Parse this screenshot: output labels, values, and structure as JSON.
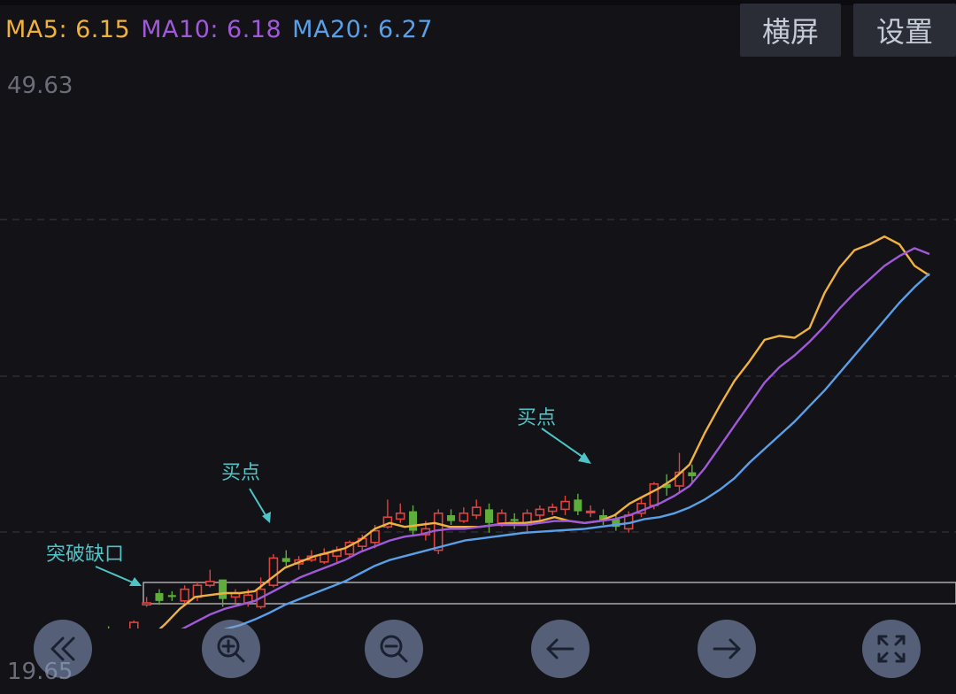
{
  "ma_legend": {
    "ma5": "MA5: 6.15",
    "ma10": "MA10: 6.18",
    "ma20": "MA20: 6.27"
  },
  "buttons": {
    "landscape": "横屏",
    "settings": "设置"
  },
  "price_axis": {
    "high": "49.63",
    "low": "19.65"
  },
  "annotations": {
    "gap_breakout": "突破缺口",
    "buy_point_1": "买点",
    "buy_point_2": "买点"
  },
  "controls": [
    {
      "name": "rewind",
      "icon": "double-chevron-left-icon"
    },
    {
      "name": "zoom-in",
      "icon": "zoom-in-icon"
    },
    {
      "name": "zoom-out",
      "icon": "zoom-out-icon"
    },
    {
      "name": "scroll-left",
      "icon": "arrow-left-icon"
    },
    {
      "name": "scroll-right",
      "icon": "arrow-right-icon"
    },
    {
      "name": "fullscreen",
      "icon": "fullscreen-icon"
    }
  ],
  "colors": {
    "up": "#e0433f",
    "down": "#5fae3c",
    "ma5": "#f0b23f",
    "ma10": "#a05ad8",
    "ma20": "#5aa0e8",
    "annotation": "#4fc3c6",
    "background": "#121217"
  },
  "chart_data": {
    "type": "candlestick",
    "ylim": [
      19.65,
      49.63
    ],
    "series": [
      {
        "name": "MA5",
        "values": [
          21.0,
          20.9,
          20.9,
          20.95,
          20.95,
          21.0,
          21.0,
          21.0,
          21.0,
          21.05,
          21.3,
          22.0,
          22.8,
          23.4,
          23.5,
          23.6,
          23.6,
          23.7,
          24.3,
          24.9,
          25.2,
          25.5,
          25.7,
          25.9,
          26.3,
          26.9,
          27.2,
          27.0,
          27.1,
          27.2,
          27.0,
          27.0,
          27.0,
          27.1,
          27.2,
          27.2,
          27.3,
          27.5,
          27.3,
          27.2,
          27.3,
          27.6,
          28.2,
          28.6,
          29.0,
          29.5,
          30.2,
          31.8,
          33.2,
          34.5,
          35.5,
          36.6,
          36.8,
          36.7,
          37.2,
          39.0,
          40.3,
          41.2,
          41.5,
          41.9,
          41.5,
          40.4,
          39.9
        ]
      },
      {
        "name": "MA10",
        "values": [
          20.9,
          20.8,
          20.8,
          20.8,
          20.85,
          20.9,
          20.9,
          20.9,
          20.95,
          21.0,
          21.05,
          21.3,
          21.7,
          22.1,
          22.5,
          22.8,
          23.0,
          23.2,
          23.6,
          24.0,
          24.4,
          24.7,
          25.0,
          25.3,
          25.7,
          26.0,
          26.3,
          26.5,
          26.6,
          26.8,
          26.9,
          26.9,
          27.0,
          27.1,
          27.1,
          27.1,
          27.2,
          27.3,
          27.3,
          27.2,
          27.3,
          27.4,
          27.6,
          27.9,
          28.2,
          28.6,
          29.1,
          30.0,
          31.1,
          32.2,
          33.3,
          34.4,
          35.2,
          35.8,
          36.5,
          37.3,
          38.2,
          39.0,
          39.7,
          40.4,
          40.9,
          41.3,
          41.0
        ]
      },
      {
        "name": "MA20",
        "values": [
          20.75,
          20.75,
          20.75,
          20.75,
          20.75,
          20.75,
          20.8,
          20.8,
          20.8,
          20.85,
          20.95,
          21.1,
          21.25,
          21.45,
          21.6,
          21.75,
          21.95,
          22.25,
          22.6,
          23.0,
          23.3,
          23.6,
          23.9,
          24.2,
          24.6,
          25.0,
          25.3,
          25.5,
          25.7,
          25.9,
          26.1,
          26.3,
          26.4,
          26.5,
          26.6,
          26.7,
          26.75,
          26.8,
          26.85,
          26.9,
          27.0,
          27.1,
          27.2,
          27.4,
          27.5,
          27.7,
          28.0,
          28.4,
          28.9,
          29.5,
          30.3,
          31.0,
          31.7,
          32.4,
          33.2,
          34.0,
          34.9,
          35.8,
          36.7,
          37.6,
          38.5,
          39.3,
          40.0
        ]
      }
    ],
    "candles": [
      {
        "o": 21.0,
        "c": 20.6,
        "h": 21.2,
        "l": 20.4
      },
      {
        "o": 20.8,
        "c": 21.1,
        "h": 21.3,
        "l": 20.6
      },
      {
        "o": 21.0,
        "c": 20.7,
        "h": 21.4,
        "l": 20.5
      },
      {
        "o": 20.8,
        "c": 21.2,
        "h": 21.5,
        "l": 20.6
      },
      {
        "o": 21.1,
        "c": 20.9,
        "h": 21.3,
        "l": 20.7
      },
      {
        "o": 20.9,
        "c": 21.2,
        "h": 21.4,
        "l": 20.8
      },
      {
        "o": 21.2,
        "c": 21.0,
        "h": 21.3,
        "l": 20.8
      },
      {
        "o": 21.0,
        "c": 21.3,
        "h": 21.4,
        "l": 20.9
      },
      {
        "o": 21.3,
        "c": 21.1,
        "h": 21.9,
        "l": 20.9
      },
      {
        "o": 21.0,
        "c": 21.4,
        "h": 21.6,
        "l": 20.6
      },
      {
        "o": 21.3,
        "c": 22.1,
        "h": 22.2,
        "l": 21.2
      },
      {
        "o": 23.0,
        "c": 23.1,
        "h": 23.4,
        "l": 22.9
      },
      {
        "o": 23.6,
        "c": 23.2,
        "h": 23.8,
        "l": 23.0
      },
      {
        "o": 23.5,
        "c": 23.4,
        "h": 23.7,
        "l": 23.2
      },
      {
        "o": 23.2,
        "c": 23.8,
        "h": 24.0,
        "l": 23.1
      },
      {
        "o": 23.4,
        "c": 24.0,
        "h": 24.2,
        "l": 23.2
      },
      {
        "o": 24.0,
        "c": 24.2,
        "h": 24.8,
        "l": 23.9
      },
      {
        "o": 24.3,
        "c": 23.3,
        "h": 24.3,
        "l": 22.9
      },
      {
        "o": 23.4,
        "c": 23.6,
        "h": 23.8,
        "l": 23.1
      },
      {
        "o": 23.1,
        "c": 23.5,
        "h": 23.8,
        "l": 22.9
      },
      {
        "o": 22.9,
        "c": 23.8,
        "h": 24.4,
        "l": 22.8
      },
      {
        "o": 24.0,
        "c": 25.4,
        "h": 25.6,
        "l": 23.9
      },
      {
        "o": 25.4,
        "c": 25.2,
        "h": 25.8,
        "l": 25.0
      },
      {
        "o": 25.1,
        "c": 25.3,
        "h": 25.5,
        "l": 24.8
      },
      {
        "o": 25.3,
        "c": 25.5,
        "h": 25.8,
        "l": 25.2
      },
      {
        "o": 25.2,
        "c": 25.6,
        "h": 25.9,
        "l": 25.1
      },
      {
        "o": 25.5,
        "c": 25.8,
        "h": 26.0,
        "l": 25.2
      },
      {
        "o": 25.6,
        "c": 26.2,
        "h": 26.3,
        "l": 25.4
      },
      {
        "o": 26.0,
        "c": 26.4,
        "h": 26.6,
        "l": 25.8
      },
      {
        "o": 26.2,
        "c": 26.8,
        "h": 27.1,
        "l": 25.9
      },
      {
        "o": 27.0,
        "c": 27.5,
        "h": 28.4,
        "l": 26.9
      },
      {
        "o": 27.4,
        "c": 27.7,
        "h": 28.2,
        "l": 27.2
      },
      {
        "o": 27.8,
        "c": 26.8,
        "h": 28.1,
        "l": 26.5
      },
      {
        "o": 26.6,
        "c": 26.9,
        "h": 27.3,
        "l": 26.3
      },
      {
        "o": 25.8,
        "c": 27.7,
        "h": 27.9,
        "l": 25.6
      },
      {
        "o": 27.6,
        "c": 27.3,
        "h": 27.9,
        "l": 27.1
      },
      {
        "o": 27.3,
        "c": 27.7,
        "h": 28.0,
        "l": 27.2
      },
      {
        "o": 27.6,
        "c": 28.0,
        "h": 28.4,
        "l": 27.4
      },
      {
        "o": 27.9,
        "c": 27.2,
        "h": 28.2,
        "l": 26.7
      },
      {
        "o": 27.2,
        "c": 27.7,
        "h": 27.9,
        "l": 27.0
      },
      {
        "o": 27.4,
        "c": 27.3,
        "h": 27.7,
        "l": 26.9
      },
      {
        "o": 27.1,
        "c": 27.7,
        "h": 27.9,
        "l": 26.7
      },
      {
        "o": 27.6,
        "c": 27.9,
        "h": 28.1,
        "l": 27.3
      },
      {
        "o": 27.8,
        "c": 28.0,
        "h": 28.2,
        "l": 27.6
      },
      {
        "o": 27.9,
        "c": 28.3,
        "h": 28.6,
        "l": 27.6
      },
      {
        "o": 28.4,
        "c": 27.8,
        "h": 28.7,
        "l": 27.6
      },
      {
        "o": 27.8,
        "c": 27.8,
        "h": 28.1,
        "l": 27.5
      },
      {
        "o": 27.6,
        "c": 27.3,
        "h": 27.9,
        "l": 27.1
      },
      {
        "o": 27.4,
        "c": 27.0,
        "h": 27.6,
        "l": 26.8
      },
      {
        "o": 26.9,
        "c": 27.6,
        "h": 27.8,
        "l": 26.7
      },
      {
        "o": 27.7,
        "c": 28.2,
        "h": 28.5,
        "l": 27.5
      },
      {
        "o": 28.1,
        "c": 29.2,
        "h": 29.3,
        "l": 27.9
      },
      {
        "o": 29.2,
        "c": 29.0,
        "h": 29.7,
        "l": 28.6
      },
      {
        "o": 29.1,
        "c": 29.8,
        "h": 30.8,
        "l": 28.8
      },
      {
        "o": 29.8,
        "c": 29.6,
        "h": 30.2,
        "l": 29.2
      }
    ]
  }
}
